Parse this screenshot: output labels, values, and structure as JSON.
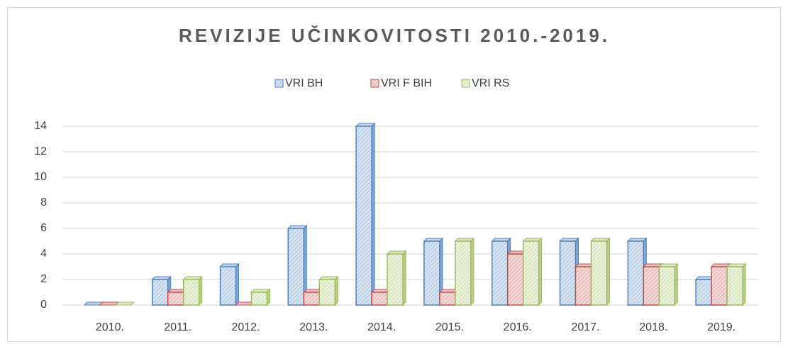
{
  "chart_data": {
    "type": "bar",
    "title": "REVIZIJE UČINKOVITOSTI 2010.-2019.",
    "categories": [
      "2010.",
      "2011.",
      "2012.",
      "2013.",
      "2014.",
      "2015.",
      "2016.",
      "2017.",
      "2018.",
      "2019."
    ],
    "series": [
      {
        "name": "VRI BH",
        "color": "#4f81bd",
        "values": [
          0,
          2,
          3,
          6,
          14,
          5,
          5,
          5,
          5,
          2
        ]
      },
      {
        "name": "VRI F BIH",
        "color": "#c0504d",
        "values": [
          0,
          1,
          0,
          1,
          1,
          1,
          4,
          3,
          3,
          3
        ]
      },
      {
        "name": "VRI RS",
        "color": "#9bbb59",
        "values": [
          0,
          2,
          1,
          2,
          4,
          5,
          5,
          5,
          3,
          3
        ]
      }
    ],
    "ylim": [
      0,
      14
    ],
    "yticks": [
      0,
      2,
      4,
      6,
      8,
      10,
      12,
      14
    ],
    "grid": true,
    "legend": "top"
  }
}
